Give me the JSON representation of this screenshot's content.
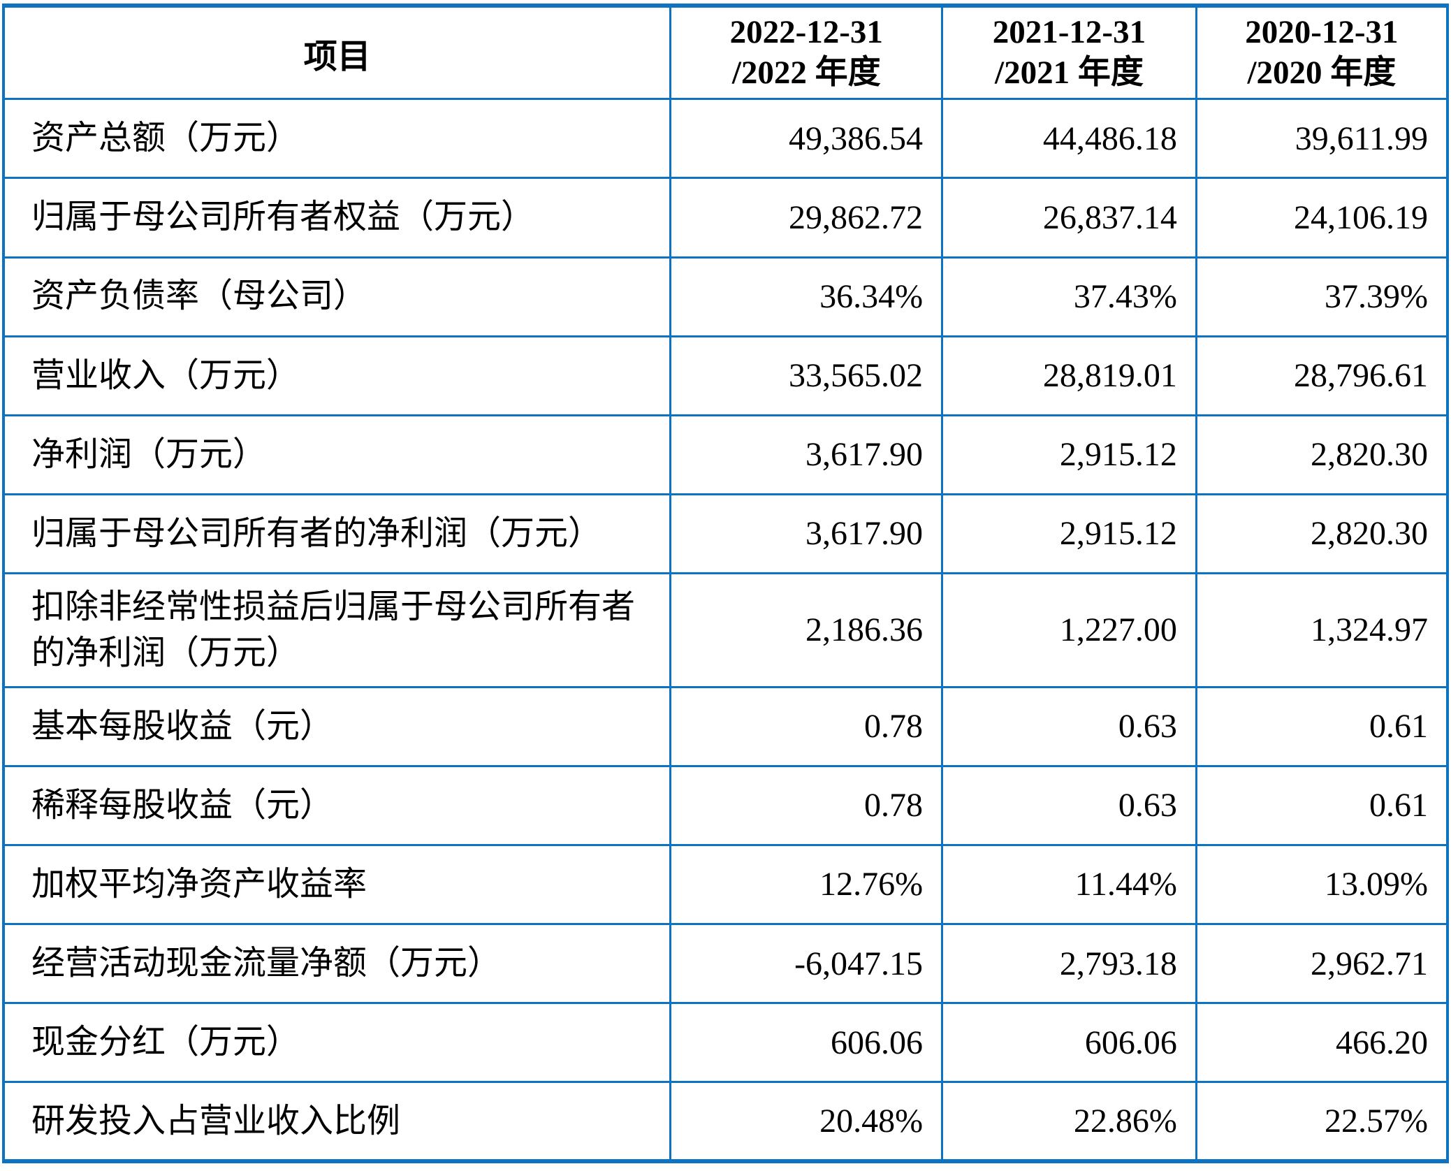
{
  "table": {
    "header": {
      "item_label": "项目",
      "periods": [
        {
          "date": "2022-12-31",
          "period": "/2022 年度"
        },
        {
          "date": "2021-12-31",
          "period": "/2021 年度"
        },
        {
          "date": "2020-12-31",
          "period": "/2020 年度"
        }
      ]
    },
    "rows": [
      {
        "label": "资产总额（万元）",
        "values": [
          "49,386.54",
          "44,486.18",
          "39,611.99"
        ]
      },
      {
        "label": "归属于母公司所有者权益（万元）",
        "values": [
          "29,862.72",
          "26,837.14",
          "24,106.19"
        ]
      },
      {
        "label": "资产负债率（母公司）",
        "values": [
          "36.34%",
          "37.43%",
          "37.39%"
        ]
      },
      {
        "label": "营业收入（万元）",
        "values": [
          "33,565.02",
          "28,819.01",
          "28,796.61"
        ]
      },
      {
        "label": "净利润（万元）",
        "values": [
          "3,617.90",
          "2,915.12",
          "2,820.30"
        ]
      },
      {
        "label": "归属于母公司所有者的净利润（万元）",
        "values": [
          "3,617.90",
          "2,915.12",
          "2,820.30"
        ]
      },
      {
        "label": "扣除非经常性损益后归属于母公司所有者的净利润（万元）",
        "values": [
          "2,186.36",
          "1,227.00",
          "1,324.97"
        ]
      },
      {
        "label": "基本每股收益（元）",
        "values": [
          "0.78",
          "0.63",
          "0.61"
        ]
      },
      {
        "label": "稀释每股收益（元）",
        "values": [
          "0.78",
          "0.63",
          "0.61"
        ]
      },
      {
        "label": "加权平均净资产收益率",
        "values": [
          "12.76%",
          "11.44%",
          "13.09%"
        ]
      },
      {
        "label": "经营活动现金流量净额（万元）",
        "values": [
          "-6,047.15",
          "2,793.18",
          "2,962.71"
        ]
      },
      {
        "label": "现金分红（万元）",
        "values": [
          "606.06",
          "606.06",
          "466.20"
        ]
      },
      {
        "label": "研发投入占营业收入比例",
        "values": [
          "20.48%",
          "22.86%",
          "22.57%"
        ]
      }
    ],
    "colors": {
      "border_blue": "#0d72c0",
      "text": "#000000",
      "background": "#ffffff"
    }
  }
}
